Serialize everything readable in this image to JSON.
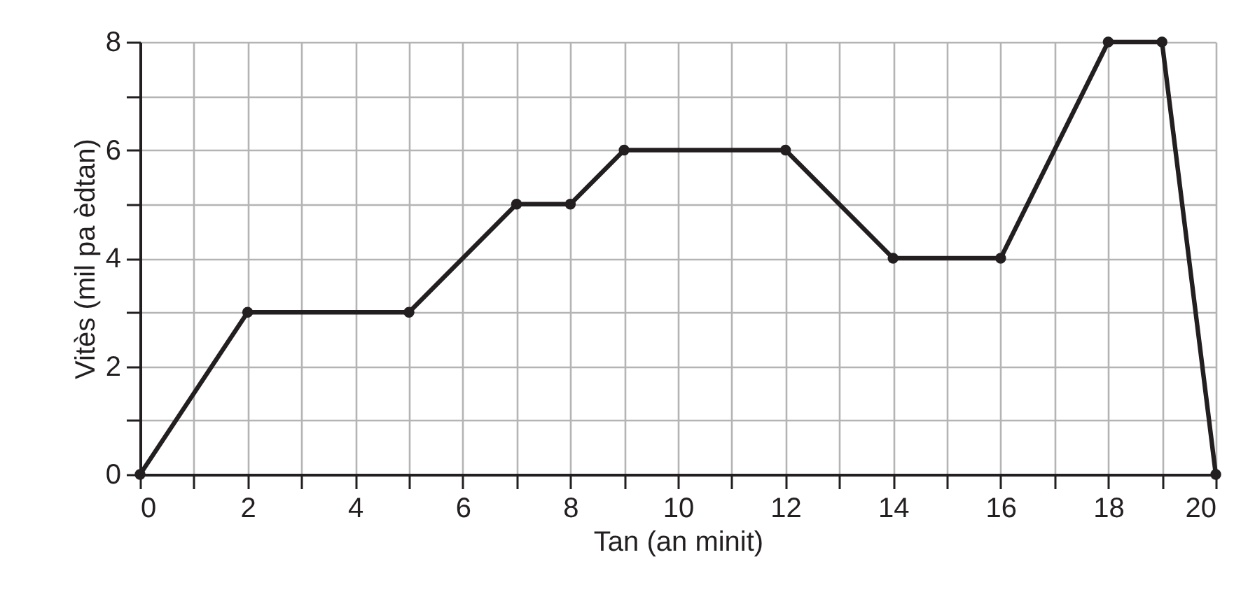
{
  "chart_data": {
    "type": "line",
    "xlabel": "Tan (an minit)",
    "ylabel": "Vitès (mil pa èdtan)",
    "x": [
      0,
      2,
      5,
      7,
      8,
      9,
      12,
      14,
      16,
      18,
      19,
      20
    ],
    "series": [
      {
        "color": "#231f20",
        "values": [
          0,
          3,
          3,
          5,
          5,
          6,
          6,
          4,
          4,
          8,
          8,
          0
        ]
      }
    ],
    "xlim": [
      0,
      20
    ],
    "ylim": [
      0,
      8
    ],
    "xticks": [
      0,
      {
        "value": 1,
        "label": null
      },
      2,
      {
        "value": 3,
        "label": null
      },
      4,
      {
        "value": 5,
        "label": null
      },
      6,
      {
        "value": 7,
        "label": null
      },
      8,
      {
        "value": 9,
        "label": null
      },
      10,
      {
        "value": 11,
        "label": null
      },
      12,
      {
        "value": 13,
        "label": null
      },
      14,
      {
        "value": 15,
        "label": null
      },
      16,
      {
        "value": 17,
        "label": null
      },
      18,
      {
        "value": 19,
        "label": null
      },
      20
    ],
    "yticks": [
      0,
      {
        "value": 1,
        "label": null
      },
      2,
      {
        "value": 3,
        "label": null
      },
      4,
      {
        "value": 5,
        "label": null
      },
      6,
      {
        "value": 7,
        "label": null
      },
      8
    ],
    "grid": true,
    "marker": "circle",
    "line_style": "solid"
  }
}
